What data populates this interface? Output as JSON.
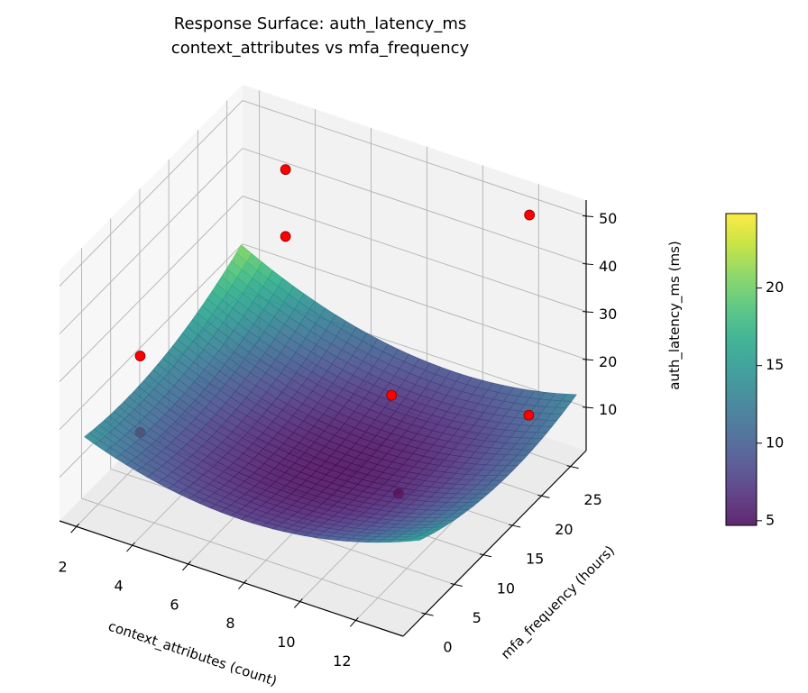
{
  "chart_data": {
    "type": "surface3d",
    "title": [
      "Response Surface: auth_latency_ms",
      "context_attributes vs mfa_frequency"
    ],
    "xlabel": "context_attributes (count)",
    "ylabel": "mfa_frequency (hours)",
    "zlabel": "auth_latency_ms (ms)",
    "xlim": [
      1.4,
      13.7
    ],
    "ylim": [
      -3.8,
      27.7
    ],
    "zlim": [
      0.9,
      53.3
    ],
    "xticks": [
      2,
      4,
      6,
      8,
      10,
      12
    ],
    "yticks": [
      0,
      5,
      10,
      15,
      20,
      25
    ],
    "zticks": [
      10,
      20,
      30,
      40,
      50
    ],
    "grid": true,
    "surface": {
      "colormap": "viridis",
      "x_range": [
        1.5,
        13.5
      ],
      "y_range": [
        0,
        27
      ],
      "z_range": [
        4.8,
        24.7
      ]
    },
    "points": {
      "color": "#ff0000",
      "data": [
        {
          "x": 3.5,
          "y": 25,
          "z": 43
        },
        {
          "x": 3.5,
          "y": 25,
          "z": 29
        },
        {
          "x": 2.0,
          "y": 7.2,
          "z": 23
        },
        {
          "x": 11.9,
          "y": 26.6,
          "z": 48
        },
        {
          "x": 7.9,
          "y": 22.1,
          "z": 8
        },
        {
          "x": 12.5,
          "y": 23.6,
          "z": 11
        },
        {
          "x": 2.0,
          "y": 7.2,
          "z": 7
        },
        {
          "x": 10.0,
          "y": 13.2,
          "z": 2.5
        }
      ]
    },
    "colorbar": {
      "range": [
        4.7,
        24.8
      ],
      "ticks": [
        5,
        10,
        15,
        20
      ]
    }
  }
}
